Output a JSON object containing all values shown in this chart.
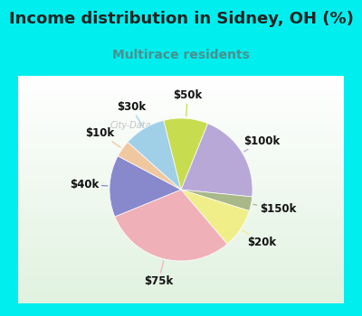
{
  "title": "Income distribution in Sidney, OH (%)",
  "subtitle": "Multirace residents",
  "title_color": "#222222",
  "subtitle_color": "#4a9090",
  "background_outer": "#00EEEE",
  "watermark": "City-Data.com",
  "slices": [
    {
      "label": "$100k",
      "value": 20.5,
      "color": "#b8a8d8"
    },
    {
      "label": "$150k",
      "value": 3.2,
      "color": "#a8b888"
    },
    {
      "label": "$20k",
      "value": 9.0,
      "color": "#f0ee88"
    },
    {
      "label": "$75k",
      "value": 30.0,
      "color": "#f0b0b8"
    },
    {
      "label": "$40k",
      "value": 14.0,
      "color": "#8888cc"
    },
    {
      "label": "$10k",
      "value": 3.8,
      "color": "#f0c8a0"
    },
    {
      "label": "$30k",
      "value": 9.5,
      "color": "#a0d0e8"
    },
    {
      "label": "$50k",
      "value": 10.0,
      "color": "#c8dc50"
    }
  ],
  "label_fontsize": 8.5,
  "title_fontsize": 13,
  "subtitle_fontsize": 10,
  "startangle": 68
}
